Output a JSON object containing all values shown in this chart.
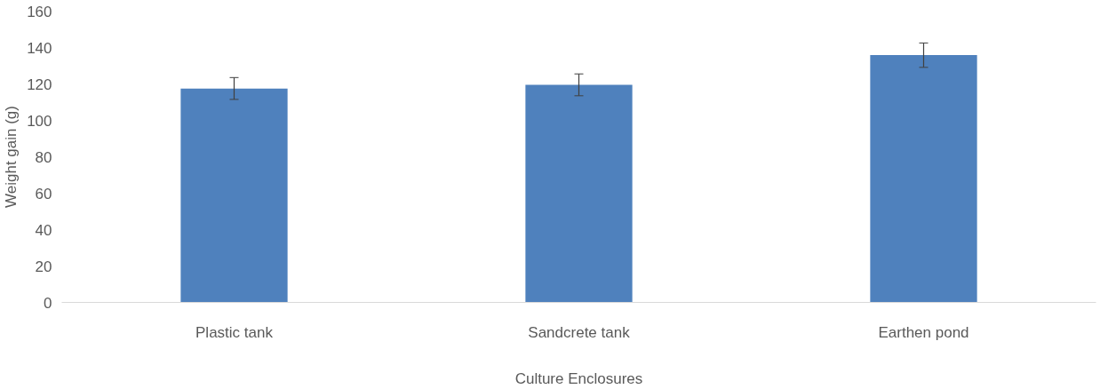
{
  "chart_data": {
    "type": "bar",
    "xlabel": "Culture Enclosures",
    "ylabel": "Weight gain (g)",
    "categories": [
      "Plastic tank",
      "Sandcrete tank",
      "Earthen pond"
    ],
    "values": [
      117.5,
      119.5,
      135.8
    ],
    "errors": [
      6,
      6,
      6.7
    ],
    "color": "#4f81bd",
    "ylim": [
      0,
      160
    ],
    "yticks": [
      0,
      20,
      40,
      60,
      80,
      100,
      120,
      140,
      160
    ],
    "grid": false
  }
}
